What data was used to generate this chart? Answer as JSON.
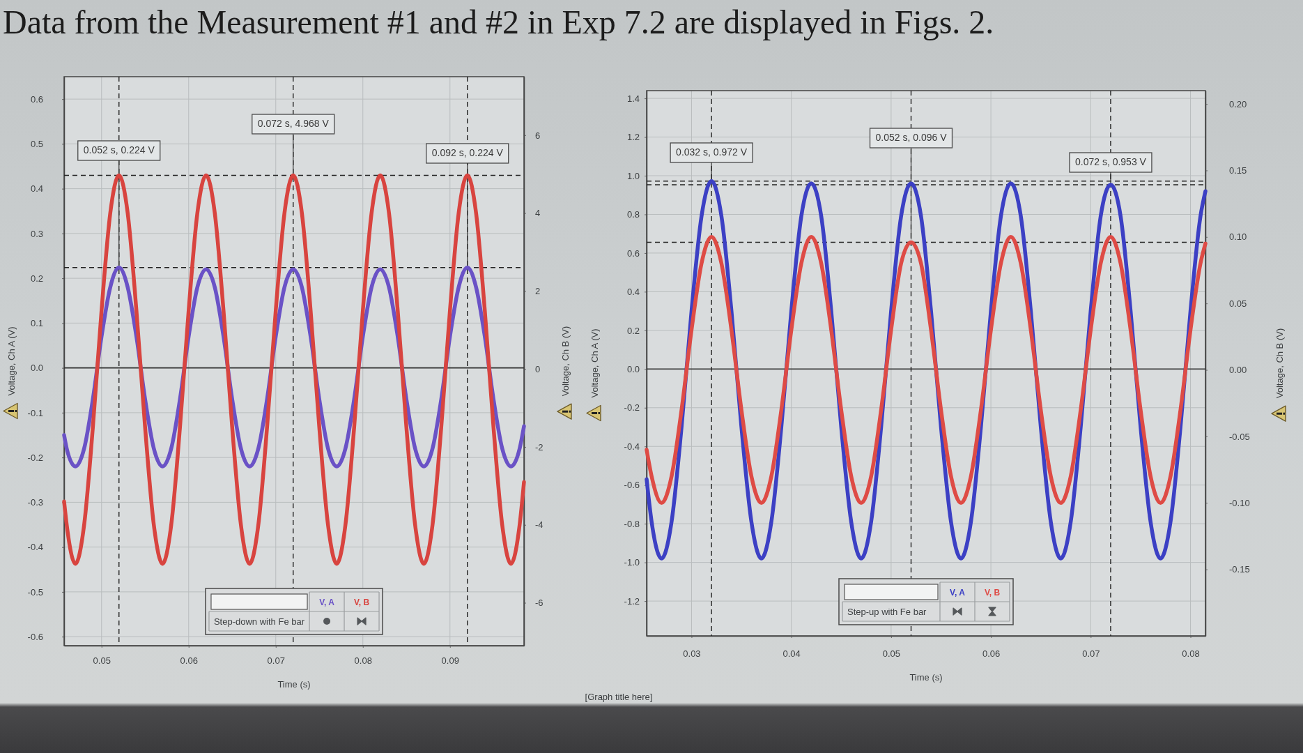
{
  "chart_data": [
    {
      "type": "line",
      "title": "Data from the Measurement #1 and #2 in Exp 7.2 are displayed in Figs. 2.",
      "xlabel": "Time (s)",
      "ylabel": "Voltage, Ch A (V)",
      "y2label": "Voltage, Ch B (V)",
      "legend_title": "Step-down with Fe bar",
      "x": [
        0.0457,
        0.046,
        0.047,
        0.048,
        0.049,
        0.05,
        0.051,
        0.052,
        0.053,
        0.054,
        0.055,
        0.056,
        0.057,
        0.058,
        0.059,
        0.06,
        0.061,
        0.062,
        0.063,
        0.064,
        0.065,
        0.066,
        0.067,
        0.068,
        0.069,
        0.07,
        0.071,
        0.072,
        0.073,
        0.074,
        0.075,
        0.076,
        0.077,
        0.078,
        0.079,
        0.08,
        0.081,
        0.082,
        0.083,
        0.084,
        0.085,
        0.086,
        0.087,
        0.088,
        0.089,
        0.09,
        0.091,
        0.092,
        0.093,
        0.094,
        0.095,
        0.096,
        0.097,
        0.098,
        0.0985
      ],
      "series": [
        {
          "name": "V, A",
          "color": "#6a52c6",
          "values": [
            -0.15,
            -0.18,
            -0.22,
            -0.18,
            -0.07,
            0.07,
            0.18,
            0.224,
            0.18,
            0.07,
            -0.07,
            -0.18,
            -0.22,
            -0.18,
            -0.07,
            0.07,
            0.18,
            0.22,
            0.18,
            0.07,
            -0.07,
            -0.18,
            -0.22,
            -0.18,
            -0.07,
            0.07,
            0.18,
            0.22,
            0.18,
            0.07,
            -0.07,
            -0.18,
            -0.22,
            -0.18,
            -0.07,
            0.07,
            0.18,
            0.22,
            0.18,
            0.07,
            -0.07,
            -0.18,
            -0.22,
            -0.18,
            -0.07,
            0.07,
            0.18,
            0.224,
            0.18,
            0.07,
            -0.07,
            -0.18,
            -0.22,
            -0.18,
            -0.13
          ]
        },
        {
          "name": "V, B",
          "color": "#d8443f",
          "axis": "y2",
          "values": [
            -3.4,
            -4.0,
            -5.0,
            -4.0,
            -1.5,
            1.5,
            4.0,
            4.97,
            4.0,
            1.5,
            -1.5,
            -4.0,
            -5.0,
            -4.0,
            -1.5,
            1.5,
            4.0,
            4.97,
            4.0,
            1.5,
            -1.5,
            -4.0,
            -5.0,
            -4.0,
            -1.5,
            1.5,
            4.0,
            4.968,
            4.0,
            1.5,
            -1.5,
            -4.0,
            -5.0,
            -4.0,
            -1.5,
            1.5,
            4.0,
            4.97,
            4.0,
            1.5,
            -1.5,
            -4.0,
            -5.0,
            -4.0,
            -1.5,
            1.5,
            4.0,
            4.97,
            4.0,
            1.5,
            -1.5,
            -4.0,
            -5.0,
            -4.0,
            -2.9
          ]
        }
      ],
      "xlim": [
        0.0457,
        0.0985
      ],
      "xticks": [
        0.05,
        0.06,
        0.07,
        0.08,
        0.09
      ],
      "ylim": [
        -0.62,
        0.65
      ],
      "yticks": [
        -0.6,
        -0.5,
        -0.4,
        -0.3,
        -0.2,
        -0.1,
        {
          "value": 0,
          "label": "0.0"
        },
        0.1,
        0.2,
        0.3,
        0.4,
        0.5,
        0.6
      ],
      "y2lim": [
        -7.1,
        7.5
      ],
      "y2ticks": [
        -6,
        -4,
        -2,
        0,
        2,
        4,
        6
      ],
      "ref_lines": [
        {
          "axis": "y",
          "value": 0,
          "line_style": "solid"
        },
        {
          "axis": "y",
          "value": 0.224,
          "line_style": "dashed"
        },
        {
          "axis": "y2",
          "value": 4.968,
          "line_style": "dashed"
        },
        {
          "axis": "x",
          "value": 0.052,
          "line_style": "dashed"
        },
        {
          "axis": "x",
          "value": 0.072,
          "line_style": "dashed"
        },
        {
          "axis": "x",
          "value": 0.092,
          "line_style": "dashed"
        }
      ],
      "annotations": [
        {
          "text": "0.052 s, 0.224 V",
          "x": 0.052,
          "y": 0.224
        },
        {
          "text": "0.072 s, 4.968 V",
          "x": 0.072,
          "y": 0.43
        },
        {
          "text": "0.092 s, 0.224 V",
          "x": 0.092,
          "y": 0.224
        }
      ],
      "grid": true,
      "legend": "bottom"
    },
    {
      "type": "line",
      "xlabel": "Time (s)",
      "ylabel": "Voltage, Ch A (V)",
      "y2label": "Voltage, Ch B (V)",
      "legend_title": "Step-up with Fe bar",
      "x": [
        0.0255,
        0.026,
        0.027,
        0.028,
        0.029,
        0.03,
        0.031,
        0.032,
        0.033,
        0.034,
        0.035,
        0.036,
        0.037,
        0.038,
        0.039,
        0.04,
        0.041,
        0.042,
        0.043,
        0.044,
        0.045,
        0.046,
        0.047,
        0.048,
        0.049,
        0.05,
        0.051,
        0.052,
        0.053,
        0.054,
        0.055,
        0.056,
        0.057,
        0.058,
        0.059,
        0.06,
        0.061,
        0.062,
        0.063,
        0.064,
        0.065,
        0.066,
        0.067,
        0.068,
        0.069,
        0.07,
        0.071,
        0.072,
        0.073,
        0.074,
        0.075,
        0.076,
        0.077,
        0.078,
        0.079,
        0.08,
        0.081,
        0.0815
      ],
      "series": [
        {
          "name": "V, A",
          "color": "#3c40c4",
          "values": [
            -0.57,
            -0.79,
            -0.98,
            -0.79,
            -0.3,
            0.3,
            0.79,
            0.972,
            0.79,
            0.3,
            -0.3,
            -0.79,
            -0.98,
            -0.79,
            -0.3,
            0.3,
            0.79,
            0.96,
            0.79,
            0.3,
            -0.3,
            -0.79,
            -0.98,
            -0.79,
            -0.3,
            0.3,
            0.79,
            0.96,
            0.79,
            0.3,
            -0.3,
            -0.79,
            -0.98,
            -0.79,
            -0.3,
            0.3,
            0.79,
            0.96,
            0.79,
            0.3,
            -0.3,
            -0.79,
            -0.98,
            -0.79,
            -0.3,
            0.3,
            0.79,
            0.953,
            0.79,
            0.3,
            -0.3,
            -0.79,
            -0.98,
            -0.79,
            -0.3,
            0.3,
            0.79,
            0.92
          ]
        },
        {
          "name": "V, B",
          "color": "#de4b45",
          "axis": "y2",
          "values": [
            -0.06,
            -0.08,
            -0.1,
            -0.08,
            -0.03,
            0.03,
            0.08,
            0.1,
            0.08,
            0.03,
            -0.03,
            -0.08,
            -0.1,
            -0.08,
            -0.03,
            0.03,
            0.08,
            0.1,
            0.08,
            0.03,
            -0.03,
            -0.08,
            -0.1,
            -0.08,
            -0.03,
            0.03,
            0.08,
            0.096,
            0.08,
            0.03,
            -0.03,
            -0.08,
            -0.1,
            -0.08,
            -0.03,
            0.03,
            0.08,
            0.1,
            0.08,
            0.03,
            -0.03,
            -0.08,
            -0.1,
            -0.08,
            -0.03,
            0.03,
            0.08,
            0.1,
            0.08,
            0.03,
            -0.03,
            -0.08,
            -0.1,
            -0.08,
            -0.03,
            0.03,
            0.08,
            0.095
          ]
        }
      ],
      "xlim": [
        0.0255,
        0.0815
      ],
      "xticks": [
        0.03,
        0.04,
        0.05,
        0.06,
        0.07,
        0.08
      ],
      "ylim": [
        -1.38,
        1.44
      ],
      "yticks": [
        -1.2,
        {
          "value": -1,
          "label": "-1.0"
        },
        -0.8,
        -0.6,
        -0.4,
        -0.2,
        {
          "value": 0,
          "label": "0.0"
        },
        0.2,
        0.4,
        0.6,
        0.8,
        {
          "value": 1,
          "label": "1.0"
        },
        1.2,
        1.4
      ],
      "y2lim": [
        -0.2,
        0.21
      ],
      "y2ticks": [
        -0.15,
        {
          "value": -0.1,
          "label": "-0.10"
        },
        -0.05,
        {
          "value": 0,
          "label": "0.00"
        },
        0.05,
        {
          "value": 0.1,
          "label": "0.10"
        },
        0.15,
        {
          "value": 0.2,
          "label": "0.20"
        }
      ],
      "ref_lines": [
        {
          "axis": "y",
          "value": 0,
          "line_style": "solid"
        },
        {
          "axis": "y",
          "value": 0.972,
          "line_style": "dashed"
        },
        {
          "axis": "y",
          "value": 0.953,
          "line_style": "dashed"
        },
        {
          "axis": "y2",
          "value": 0.096,
          "line_style": "dashed"
        },
        {
          "axis": "x",
          "value": 0.032,
          "line_style": "dashed"
        },
        {
          "axis": "x",
          "value": 0.052,
          "line_style": "dashed"
        },
        {
          "axis": "x",
          "value": 0.072,
          "line_style": "dashed"
        }
      ],
      "annotations": [
        {
          "text": "0.032 s, 0.972 V",
          "x": 0.032,
          "y": 0.972
        },
        {
          "text": "0.052 s, 0.096 V",
          "x": 0.052,
          "y": 0.66
        },
        {
          "text": "0.072 s, 0.953 V",
          "x": 0.072,
          "y": 0.953
        },
        "[Graph title here]"
      ],
      "grid": true,
      "legend": "bottom"
    }
  ]
}
